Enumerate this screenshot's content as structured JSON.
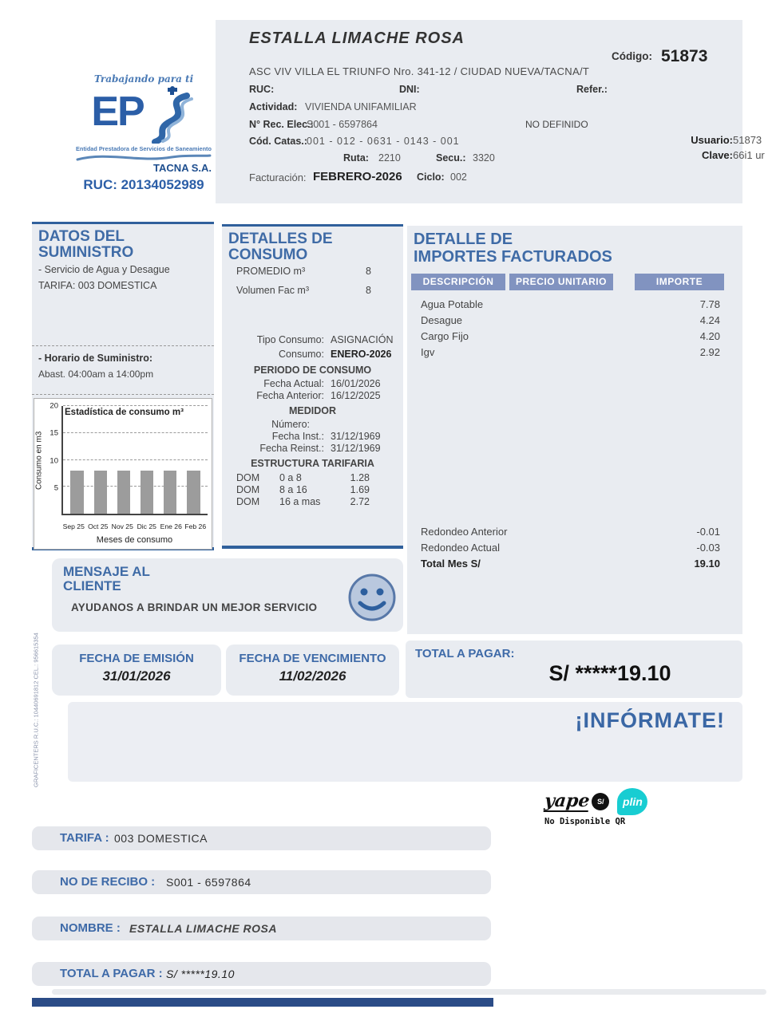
{
  "logo": {
    "tagline": "Trabajando para ti",
    "brand_letters": "EP",
    "subtitle": "Entidad Prestadora de Servicios de Saneamiento",
    "company": "TACNA S.A.",
    "ruc": "RUC: 20134052989"
  },
  "header": {
    "customer_name": "ESTALLA LIMACHE ROSA",
    "address": "ASC VIV VILLA EL TRIUNFO Nro. 341-12 / CIUDAD NUEVA/TACNA/T",
    "ruc_label": "RUC:",
    "dni_label": "DNI:",
    "refer_label": "Refer.:",
    "actividad_label": "Actividad:",
    "actividad_value": "VIVIENDA UNIFAMILIAR",
    "rec_elec_label": "N° Rec. Elec.:",
    "rec_elec_value": "S001 - 6597864",
    "no_definido": "NO DEFINIDO",
    "catas_label": "Cód. Catas.:",
    "catas_value": "001 - 012 - 0631 - 0143 - 001",
    "ruta_label": "Ruta:",
    "ruta_value": "2210",
    "secu_label": "Secu.:",
    "secu_value": "3320",
    "facturacion_label": "Facturación:",
    "facturacion_value": "FEBRERO-2026",
    "ciclo_label": "Ciclo:",
    "ciclo_value": "002",
    "codigo_label": "Código:",
    "codigo_value": "51873",
    "usuario_label": "Usuario:",
    "usuario_value": "51873",
    "clave_label": "Clave:",
    "clave_value": "66i1 ur"
  },
  "datos_suministro": {
    "title_line1": "DATOS DEL",
    "title_line2": "SUMINISTRO",
    "servicio": "- Servicio de Agua y Desague",
    "tarifa": "TARIFA: 003 DOMESTICA",
    "horario_label": "- Horario de Suministro:",
    "horario_value": "Abast. 04:00am a 14:00pm"
  },
  "detalles_consumo": {
    "title_line1": "DETALLES DE",
    "title_line2": "CONSUMO",
    "promedio_label": "PROMEDIO m³",
    "promedio_value": "8",
    "volumen_label": "Volumen Fac m³",
    "volumen_value": "8",
    "tipo_label": "Tipo Consumo:",
    "tipo_value": "ASIGNACIÓN",
    "consumo_label": "Consumo:",
    "consumo_value": "ENERO-2026",
    "periodo_title": "PERIODO DE CONSUMO",
    "fecha_actual_label": "Fecha Actual:",
    "fecha_actual_value": "16/01/2026",
    "fecha_anterior_label": "Fecha Anterior:",
    "fecha_anterior_value": "16/12/2025",
    "medidor_title": "MEDIDOR",
    "numero_label": "Número:",
    "fecha_inst_label": "Fecha Inst.:",
    "fecha_inst_value": "31/12/1969",
    "fecha_reinst_label": "Fecha Reinst.:",
    "fecha_reinst_value": "31/12/1969",
    "estructura_title": "ESTRUCTURA TARIFARIA",
    "tarifas": [
      {
        "tipo": "DOM",
        "rango": "0 a 8",
        "precio": "1.28"
      },
      {
        "tipo": "DOM",
        "rango": "8 a 16",
        "precio": "1.69"
      },
      {
        "tipo": "DOM",
        "rango": "16 a mas",
        "precio": "2.72"
      }
    ]
  },
  "chart_data": {
    "type": "bar",
    "title": "Estadística de consumo m³",
    "categories": [
      "Sep 25",
      "Oct 25",
      "Nov 25",
      "Dic 25",
      "Ene 26",
      "Feb 26"
    ],
    "values": [
      8,
      8,
      8,
      8,
      8,
      8
    ],
    "xlabel": "Meses de consumo",
    "ylabel": "Consumo en m3",
    "ylim": [
      0,
      20
    ],
    "yticks": [
      5,
      10,
      15,
      20
    ],
    "grid": "dashed-horizontal",
    "bar_color": "#9c9c9c",
    "legend": "none"
  },
  "importes": {
    "title_line1": "DETALLE DE",
    "title_line2": "IMPORTES FACTURADOS",
    "col_descripcion": "DESCRIPCIÓN",
    "col_precio": "PRECIO UNITARIO",
    "col_importe": "IMPORTE",
    "rows": [
      {
        "desc": "Agua Potable",
        "importe": "7.78"
      },
      {
        "desc": "Desague",
        "importe": "4.24"
      },
      {
        "desc": "Cargo Fijo",
        "importe": "4.20"
      },
      {
        "desc": "Igv",
        "importe": "2.92"
      }
    ],
    "redondeo_anterior_label": "Redondeo Anterior",
    "redondeo_anterior_value": "-0.01",
    "redondeo_actual_label": "Redondeo Actual",
    "redondeo_actual_value": "-0.03",
    "total_mes_label": "Total Mes S/",
    "total_mes_value": "19.10"
  },
  "mensaje": {
    "title_line1": "MENSAJE AL",
    "title_line2": "CLIENTE",
    "body": "AYUDANOS A BRINDAR UN MEJOR SERVICIO"
  },
  "fechas": {
    "emision_label": "FECHA DE EMISIÓN",
    "emision_value": "31/01/2026",
    "vencimiento_label": "FECHA DE VENCIMIENTO",
    "vencimiento_value": "11/02/2026"
  },
  "total_pagar": {
    "label": "TOTAL A PAGAR:",
    "value": "S/ *****19.10"
  },
  "informate": "¡INFÓRMATE!",
  "pagos": {
    "yape_text": "yape",
    "yape_badge": "S/",
    "plin_text": "plin",
    "qr_note": "No Disponible QR"
  },
  "resumen": {
    "tarifa_label": "TARIFA :",
    "tarifa_value": "003 DOMESTICA",
    "recibo_label": "NO DE RECIBO :",
    "recibo_value": "S001 - 6597864",
    "nombre_label": "NOMBRE :",
    "nombre_value": "ESTALLA LIMACHE ROSA",
    "total_label": "TOTAL A PAGAR :",
    "total_value": "S/ *****19.10"
  },
  "side_text": "GRAFICENTERS   R.U.C.: 10440691812  CEL.: 956615354",
  "colors": {
    "heading_blue": "#3f6ba6",
    "table_header": "#8193c0",
    "panel_bg": "#e9ecf1",
    "bottom_bar": "#2b4c87",
    "bar_gray": "#9c9c9c",
    "plin_teal": "#18cdd2"
  }
}
